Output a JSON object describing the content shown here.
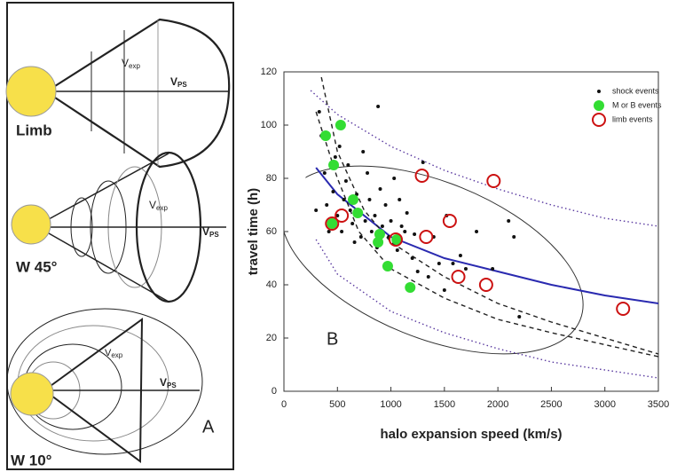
{
  "panel_a": {
    "label": "A",
    "views": [
      {
        "name": "Limb",
        "vexp": {
          "main": "V",
          "sub": "exp"
        },
        "vps": {
          "main": "V",
          "sub": "PS"
        }
      },
      {
        "name": "W 45°",
        "vexp": {
          "main": "V",
          "sub": "exp"
        },
        "vps": {
          "main": "V",
          "sub": "PS"
        }
      },
      {
        "name": "W 10°",
        "vexp": {
          "main": "V",
          "sub": "exp"
        },
        "vps": {
          "main": "V",
          "sub": "PS"
        }
      }
    ]
  },
  "chart_data": {
    "type": "scatter",
    "panel_label": "B",
    "x_label": "halo expansion speed (km/s)",
    "y_label": "travel time (h)",
    "xlim": [
      0,
      3500
    ],
    "xticks": [
      0,
      500,
      1000,
      1500,
      2000,
      2500,
      3000,
      3500
    ],
    "ylim": [
      0,
      120
    ],
    "yticks": [
      0,
      20,
      40,
      60,
      80,
      100,
      120
    ],
    "series": [
      {
        "name": "shock events",
        "color": "#111111",
        "marker": "dot",
        "x": [
          300,
          330,
          350,
          380,
          400,
          420,
          440,
          460,
          480,
          500,
          520,
          540,
          560,
          580,
          600,
          620,
          640,
          660,
          680,
          700,
          720,
          740,
          760,
          780,
          800,
          820,
          850,
          870,
          900,
          920,
          950,
          980,
          1000,
          1030,
          1060,
          1080,
          1100,
          1130,
          1150,
          1200,
          1220,
          1250,
          1300,
          1350,
          1400,
          1450,
          1500,
          1520,
          1580,
          1650,
          1700,
          1800,
          1950,
          2100,
          2150,
          2200,
          880
        ],
        "values": [
          68,
          105,
          96,
          82,
          70,
          60,
          64,
          75,
          88,
          66,
          92,
          60,
          72,
          79,
          85,
          68,
          63,
          56,
          74,
          66,
          58,
          90,
          64,
          82,
          72,
          60,
          66,
          54,
          76,
          62,
          70,
          58,
          64,
          80,
          53,
          72,
          62,
          60,
          67,
          50,
          59,
          45,
          86,
          43,
          58,
          48,
          38,
          66,
          48,
          51,
          46,
          60,
          46,
          64,
          58,
          28,
          107
        ]
      },
      {
        "name": "M or B events",
        "color": "#33dd33",
        "marker": "disk",
        "x": [
          390,
          530,
          465,
          647,
          690,
          450,
          880,
          895,
          970,
          1055,
          1180
        ],
        "values": [
          96,
          100,
          85,
          72,
          67,
          63,
          56,
          59,
          47,
          57,
          39
        ]
      },
      {
        "name": "limb events",
        "color": "#cc1111",
        "marker": "ring",
        "x": [
          450,
          540,
          1045,
          1290,
          1330,
          1550,
          1630,
          1890,
          1960,
          3170
        ],
        "values": [
          63,
          66,
          57,
          81,
          58,
          64,
          43,
          40,
          79,
          31
        ]
      }
    ],
    "curves": [
      {
        "color": "#2a2ab0",
        "style": "solid",
        "x": [
          300,
          500,
          1000,
          1500,
          2000,
          2500,
          3000,
          3500
        ],
        "values": [
          84,
          74,
          58,
          50,
          45,
          40,
          36,
          33
        ]
      },
      {
        "color": "#222222",
        "style": "dashed",
        "x": [
          350,
          500,
          750,
          1000,
          1500,
          2000,
          2500,
          3500
        ],
        "values": [
          118,
          90,
          68,
          56,
          43,
          33,
          26,
          14
        ]
      },
      {
        "color": "#222222",
        "style": "dashed",
        "x": [
          300,
          500,
          700,
          1000,
          1500,
          2000,
          2500,
          3500
        ],
        "values": [
          105,
          80,
          60,
          46,
          35,
          27,
          22,
          13
        ]
      },
      {
        "color": "#5a3aa0",
        "style": "dotted",
        "x": [
          250,
          500,
          1000,
          1500,
          2000,
          2500,
          3000,
          3500
        ],
        "values": [
          113,
          104,
          92,
          83,
          76,
          70,
          65,
          62
        ]
      },
      {
        "color": "#5a3aa0",
        "style": "dotted",
        "x": [
          300,
          500,
          1000,
          1500,
          2000,
          2500,
          3000,
          3500
        ],
        "values": [
          57,
          44,
          30,
          22,
          16,
          11,
          8,
          5
        ]
      }
    ]
  }
}
